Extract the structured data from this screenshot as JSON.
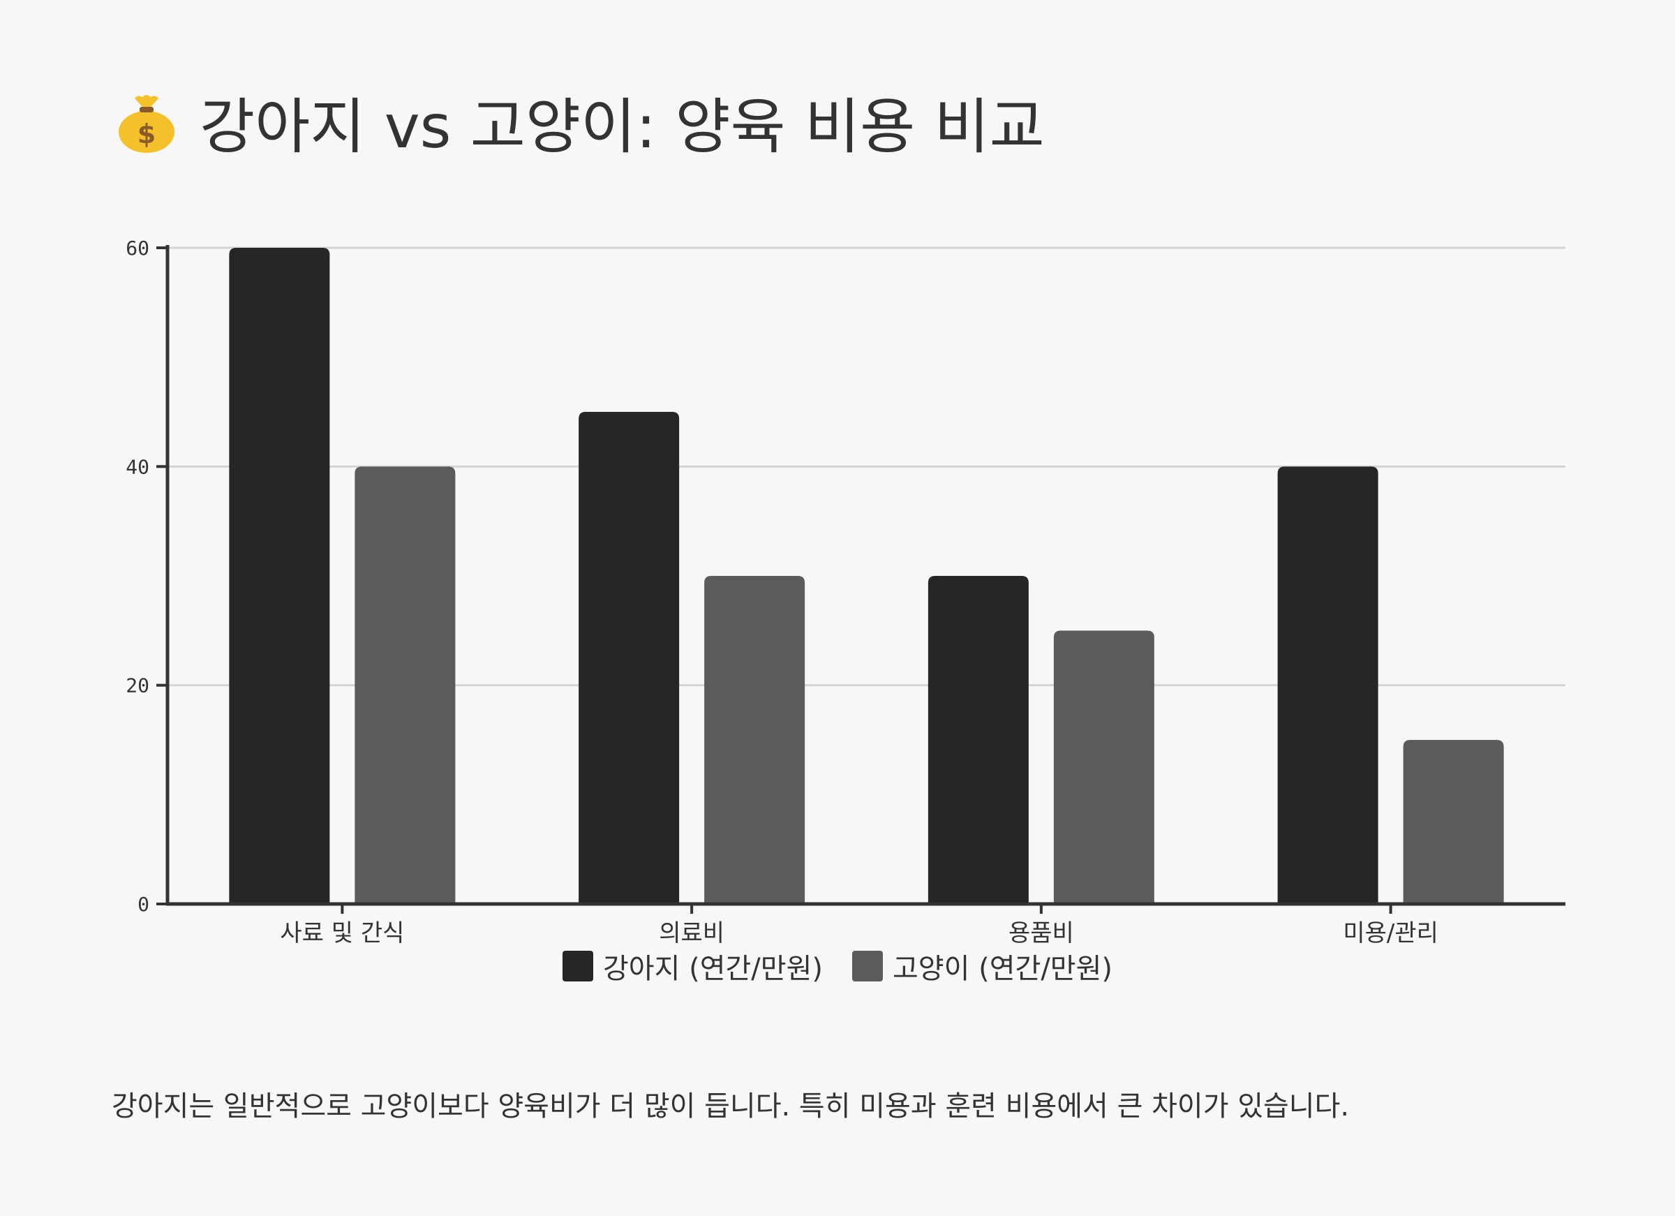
{
  "page": {
    "title_icon": "money-bag-icon",
    "title": "강아지 vs 고양이: 양육 비용 비교",
    "note": "강아지는 일반적으로 고양이보다 양육비가 더 많이 듭니다. 특히 미용과 훈련 비용에서 큰 차이가 있습니다."
  },
  "colors": {
    "background": "#f7f7f7",
    "dog": "#262626",
    "cat": "#5b5b5b",
    "grid": "#d4d4d4",
    "axis": "#333333"
  },
  "chart_data": {
    "type": "bar",
    "categories": [
      "사료 및 간식",
      "의료비",
      "용품비",
      "미용/관리"
    ],
    "series": [
      {
        "name": "강아지 (연간/만원)",
        "values": [
          60,
          45,
          30,
          40
        ]
      },
      {
        "name": "고양이 (연간/만원)",
        "values": [
          40,
          30,
          25,
          15
        ]
      }
    ],
    "yticks": [
      0,
      20,
      40,
      60
    ],
    "ylim": [
      0,
      60
    ],
    "grid": true,
    "legend_position": "bottom-center",
    "title": "",
    "xlabel": "",
    "ylabel": ""
  }
}
